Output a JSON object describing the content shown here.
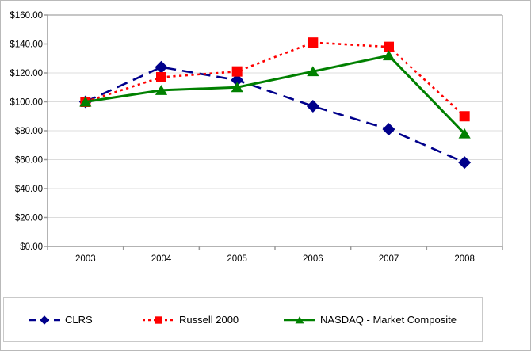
{
  "chart_data": {
    "type": "line",
    "title": "",
    "categories": [
      "2003",
      "2004",
      "2005",
      "2006",
      "2007",
      "2008"
    ],
    "xlabel": "",
    "ylabel": "",
    "y_axis": {
      "min": 0,
      "max": 160,
      "ticks": [
        {
          "value": 160,
          "label": "$160.00"
        },
        {
          "value": 140,
          "label": "$140.00"
        },
        {
          "value": 120,
          "label": "$120.00"
        },
        {
          "value": 100,
          "label": "$100.00"
        },
        {
          "value": 80,
          "label": "$80.00"
        },
        {
          "value": 60,
          "label": "$60.00"
        },
        {
          "value": 40,
          "label": "$40.00"
        },
        {
          "value": 20,
          "label": "$20.00"
        },
        {
          "value": 0,
          "label": "$0.00"
        }
      ]
    },
    "grid": true,
    "legend_position": "bottom",
    "series": [
      {
        "name": "CLRS",
        "color": "#00008B",
        "marker": "diamond",
        "line_style": "long-dash",
        "values": [
          100,
          124,
          115,
          97,
          81,
          58
        ]
      },
      {
        "name": "Russell 2000",
        "color": "#FF0000",
        "marker": "square",
        "line_style": "dot",
        "values": [
          100,
          117,
          121,
          141,
          138,
          90
        ]
      },
      {
        "name": "NASDAQ - Market Composite",
        "color": "#008000",
        "marker": "triangle",
        "line_style": "solid",
        "values": [
          100,
          108,
          110,
          121,
          132,
          78
        ]
      }
    ]
  }
}
